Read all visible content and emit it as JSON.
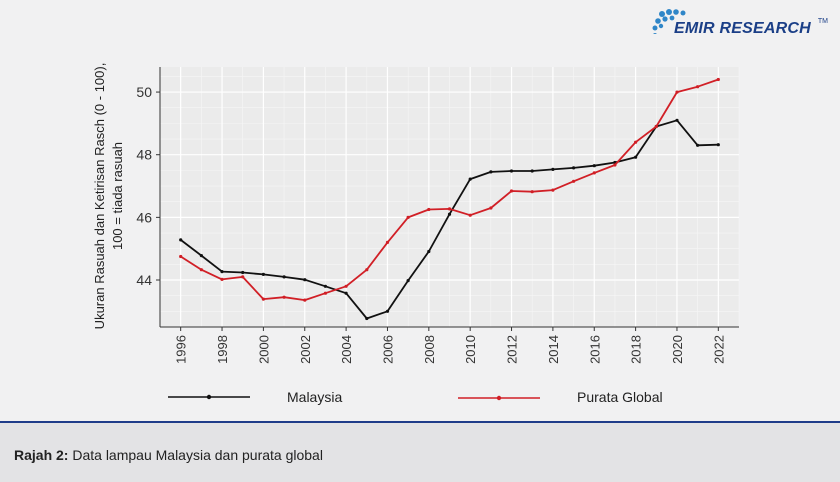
{
  "brand": {
    "name": "EMIR RESEARCH",
    "tm": "TM"
  },
  "caption": {
    "label": "Rajah 2:",
    "text": "Data lampau Malaysia dan purata global"
  },
  "chart_data": {
    "type": "line",
    "title": "",
    "xlabel": "",
    "ylabel_line1": "Ukuran Rasuah dan Ketirisan Rasch (0 - 100),",
    "ylabel_line2": "100 = tiada rasuah",
    "xlim": [
      1995,
      2023
    ],
    "ylim": [
      42.5,
      50.8
    ],
    "x_ticks": [
      1996,
      1998,
      2000,
      2002,
      2004,
      2006,
      2008,
      2010,
      2012,
      2014,
      2016,
      2018,
      2020,
      2022
    ],
    "y_ticks": [
      44,
      46,
      48,
      50
    ],
    "x": [
      1996,
      1997,
      1998,
      1999,
      2000,
      2001,
      2002,
      2003,
      2004,
      2005,
      2006,
      2007,
      2008,
      2009,
      2010,
      2011,
      2012,
      2013,
      2014,
      2015,
      2016,
      2017,
      2018,
      2019,
      2020,
      2021,
      2022
    ],
    "series": [
      {
        "name": "Malaysia",
        "color": "#111111",
        "values": [
          45.28,
          44.78,
          44.27,
          44.24,
          44.18,
          44.1,
          44.01,
          43.8,
          43.58,
          42.77,
          43.0,
          43.98,
          44.91,
          46.1,
          47.22,
          47.45,
          47.48,
          47.48,
          47.53,
          47.58,
          47.65,
          47.75,
          47.92,
          48.9,
          49.1,
          48.3,
          48.32
        ]
      },
      {
        "name": "Purata Global",
        "color": "#d11f26",
        "values": [
          44.75,
          44.33,
          44.02,
          44.1,
          43.39,
          43.45,
          43.36,
          43.58,
          43.8,
          44.33,
          45.2,
          46.0,
          46.25,
          46.27,
          46.07,
          46.3,
          46.84,
          46.82,
          46.87,
          47.15,
          47.42,
          47.67,
          48.4,
          48.9,
          50.0,
          50.17,
          50.4
        ]
      }
    ],
    "grid": true,
    "legend": "bottom"
  }
}
